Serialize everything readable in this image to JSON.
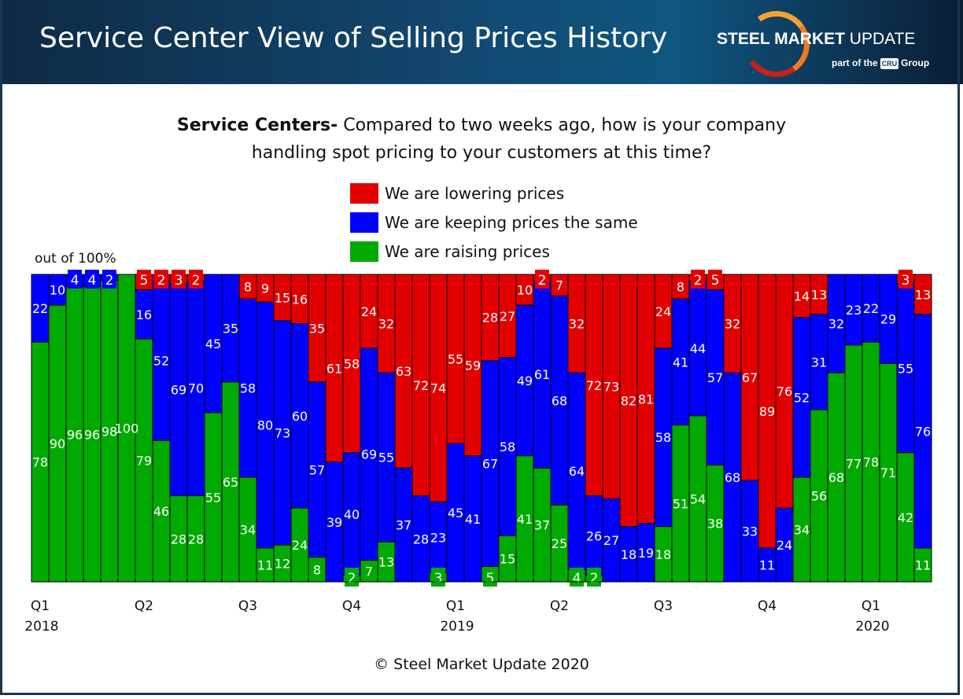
{
  "header": {
    "title": "Service Center View of Selling Prices History",
    "logo_text": "STEEL MARKET UPDATE",
    "logo_sub": "part of the CRU Group"
  },
  "question": {
    "bold": "Service Centers-",
    "line1": " Compared to two weeks ago, how is your company",
    "line2": "handling spot pricing to your customers at this time?"
  },
  "footer": "© Steel Market Update 2020",
  "chart_data": {
    "type": "bar",
    "stacked": true,
    "note": "out of 100%",
    "ylim": [
      0,
      100
    ],
    "grid": false,
    "legend_position": "top",
    "series": [
      {
        "name": "We are lowering prices",
        "color": "#e30000",
        "values": [
          0,
          0,
          0,
          0,
          0,
          0,
          5,
          2,
          3,
          2,
          0,
          0,
          8,
          9,
          15,
          16,
          35,
          61,
          58,
          24,
          32,
          63,
          72,
          74,
          55,
          59,
          28,
          27,
          10,
          2,
          7,
          32,
          72,
          73,
          82,
          81,
          24,
          8,
          2,
          5,
          32,
          67,
          89,
          76,
          14,
          13,
          0,
          0,
          0,
          0,
          3,
          13
        ]
      },
      {
        "name": "We are keeping prices the same",
        "color": "#0000ff",
        "values": [
          22,
          10,
          4,
          4,
          2,
          0,
          16,
          52,
          69,
          70,
          45,
          35,
          58,
          80,
          73,
          60,
          57,
          39,
          40,
          69,
          55,
          37,
          28,
          23,
          45,
          41,
          67,
          58,
          49,
          61,
          68,
          64,
          26,
          27,
          18,
          19,
          58,
          41,
          44,
          57,
          68,
          33,
          11,
          24,
          52,
          31,
          32,
          23,
          22,
          29,
          55,
          76
        ]
      },
      {
        "name": "We are raising prices",
        "color": "#00aa00",
        "values": [
          78,
          90,
          96,
          96,
          98,
          100,
          79,
          46,
          28,
          28,
          55,
          65,
          34,
          11,
          12,
          24,
          8,
          0,
          2,
          7,
          13,
          0,
          0,
          3,
          0,
          0,
          5,
          15,
          41,
          37,
          25,
          4,
          2,
          0,
          0,
          0,
          18,
          51,
          54,
          38,
          0,
          0,
          0,
          0,
          34,
          56,
          68,
          77,
          78,
          71,
          42,
          11
        ]
      }
    ],
    "x_tick_labels": [
      {
        "bar": 1,
        "quarter": "Q1",
        "year": "2018"
      },
      {
        "bar": 7,
        "quarter": "Q2",
        "year": ""
      },
      {
        "bar": 13,
        "quarter": "Q3",
        "year": ""
      },
      {
        "bar": 19,
        "quarter": "Q4",
        "year": ""
      },
      {
        "bar": 25,
        "quarter": "Q1",
        "year": "2019"
      },
      {
        "bar": 31,
        "quarter": "Q2",
        "year": ""
      },
      {
        "bar": 37,
        "quarter": "Q3",
        "year": ""
      },
      {
        "bar": 43,
        "quarter": "Q4",
        "year": ""
      },
      {
        "bar": 49,
        "quarter": "Q1",
        "year": "2020"
      }
    ]
  }
}
